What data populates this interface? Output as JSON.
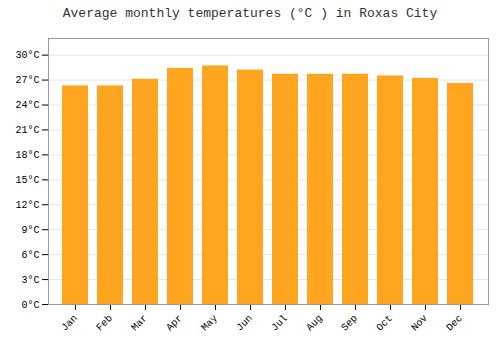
{
  "chart_data": {
    "type": "bar",
    "title": "Average monthly temperatures (°C ) in Roxas City",
    "categories": [
      "Jan",
      "Feb",
      "Mar",
      "Apr",
      "May",
      "Jun",
      "Jul",
      "Aug",
      "Sep",
      "Oct",
      "Nov",
      "Dec"
    ],
    "values": [
      26.3,
      26.3,
      27.1,
      28.4,
      28.7,
      28.2,
      27.7,
      27.7,
      27.7,
      27.5,
      27.2,
      26.6
    ],
    "color": "#FFA520",
    "ylim": [
      0,
      32
    ],
    "yticks": [
      {
        "value": 0,
        "label": "0°C"
      },
      {
        "value": 3,
        "label": "3°C"
      },
      {
        "value": 6,
        "label": "6°C"
      },
      {
        "value": 9,
        "label": "9°C"
      },
      {
        "value": 12,
        "label": "12°C"
      },
      {
        "value": 15,
        "label": "15°C"
      },
      {
        "value": 18,
        "label": "18°C"
      },
      {
        "value": 21,
        "label": "21°C"
      },
      {
        "value": 24,
        "label": "24°C"
      },
      {
        "value": 27,
        "label": "27°C"
      },
      {
        "value": 30,
        "label": "30°C"
      }
    ],
    "grid": true
  }
}
